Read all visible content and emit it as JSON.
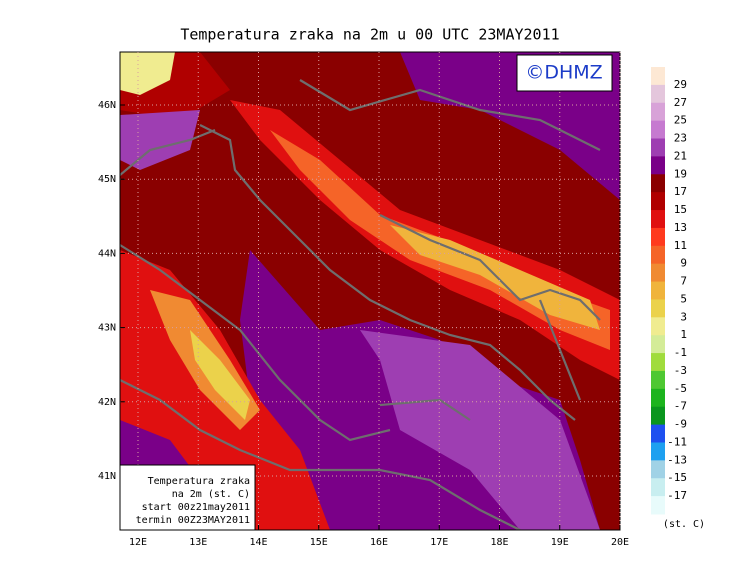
{
  "title": "Temperatura zraka na 2m u 00 UTC 23MAY2011",
  "logo": "©DHMZ",
  "x_axis": {
    "labels": [
      "12E",
      "13E",
      "14E",
      "15E",
      "16E",
      "17E",
      "18E",
      "19E",
      "20E"
    ]
  },
  "y_axis": {
    "labels": [
      "41N",
      "42N",
      "43N",
      "44N",
      "45N",
      "46N"
    ]
  },
  "colorbar": {
    "labels": [
      29,
      27,
      25,
      23,
      21,
      19,
      17,
      15,
      13,
      11,
      9,
      7,
      5,
      3,
      1,
      -1,
      -3,
      -5,
      -7,
      -9,
      -11,
      -13,
      -15,
      -17
    ],
    "colors": [
      "#fde8d4",
      "#e4c6dc",
      "#d8a2d8",
      "#c67ad0",
      "#9e3eb2",
      "#7a0088",
      "#8a0000",
      "#b00000",
      "#e01010",
      "#ff3a1e",
      "#f56428",
      "#f08a32",
      "#f0b43c",
      "#ebd24b",
      "#f0ec90",
      "#d4ec98",
      "#a0dc3c",
      "#4ec832",
      "#1cb41e",
      "#0a961e",
      "#1e50f0",
      "#1ea0f0",
      "#a0d2e6",
      "#c8eef0",
      "#e8fbfb"
    ],
    "unit": "(st. C)"
  },
  "info_box": {
    "lines": [
      "Temperatura zraka",
      "na 2m (st. C)",
      "start 00z21may2011",
      "termin 00Z23MAY2011"
    ]
  }
}
